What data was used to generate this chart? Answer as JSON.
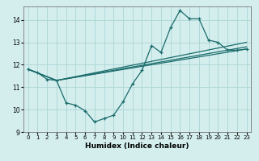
{
  "xlabel": "Humidex (Indice chaleur)",
  "bg_color": "#d4eeee",
  "line_color": "#1a6b6b",
  "grid_color": "#b0d8d8",
  "xlim": [
    -0.5,
    23.5
  ],
  "ylim": [
    9,
    14.6
  ],
  "yticks": [
    9,
    10,
    11,
    12,
    13,
    14
  ],
  "xticks": [
    0,
    1,
    2,
    3,
    4,
    5,
    6,
    7,
    8,
    9,
    10,
    11,
    12,
    13,
    14,
    15,
    16,
    17,
    18,
    19,
    20,
    21,
    22,
    23
  ],
  "line1_x": [
    0,
    1,
    2,
    3,
    4,
    5,
    6,
    7,
    8,
    9,
    10,
    11,
    12,
    13,
    14,
    15,
    16,
    17,
    18,
    19,
    20,
    21,
    22,
    23
  ],
  "line1_y": [
    11.8,
    11.65,
    11.35,
    11.3,
    10.3,
    10.2,
    9.95,
    9.45,
    9.6,
    9.75,
    10.35,
    11.15,
    11.75,
    12.85,
    12.55,
    13.65,
    14.42,
    14.05,
    14.05,
    13.1,
    13.0,
    12.65,
    12.65,
    12.7
  ],
  "line2_x": [
    0,
    3,
    23
  ],
  "line2_y": [
    11.8,
    11.3,
    12.7
  ],
  "line3_x": [
    0,
    3,
    23
  ],
  "line3_y": [
    11.8,
    11.3,
    13.0
  ],
  "line4_x": [
    0,
    3,
    23
  ],
  "line4_y": [
    11.8,
    11.3,
    12.8
  ]
}
